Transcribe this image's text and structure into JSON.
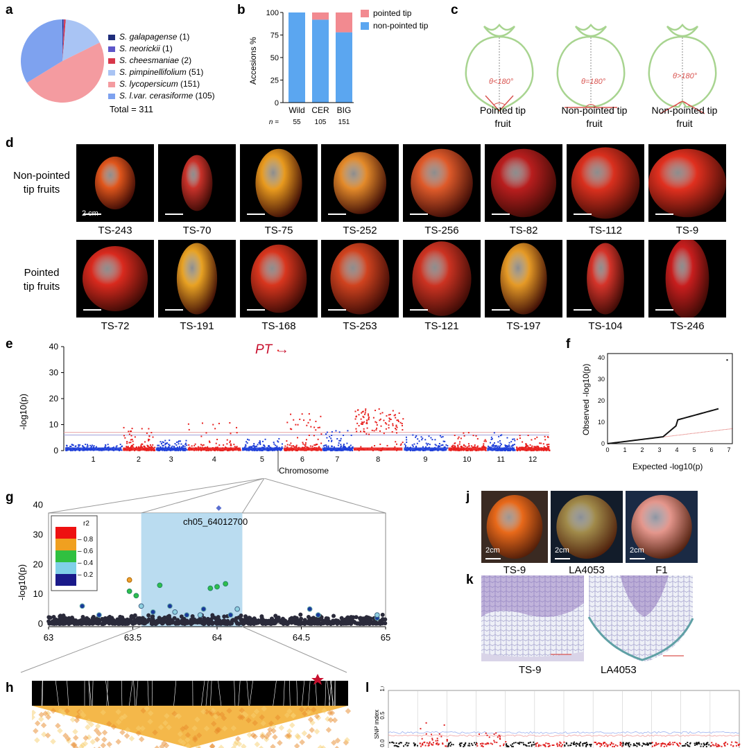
{
  "panels": [
    "a",
    "b",
    "c",
    "d",
    "e",
    "f",
    "g",
    "h",
    "j",
    "k",
    "l"
  ],
  "panel_a": {
    "legend": [
      {
        "name": "S. galapagense",
        "count": "(1)",
        "color": "#1f2d7a"
      },
      {
        "name": "S. neorickii",
        "count": "(1)",
        "color": "#5d56c9"
      },
      {
        "name": "S. cheesmaniae",
        "count": "(2)",
        "color": "#d8374a"
      },
      {
        "name": "S. pimpinellifolium",
        "count": "(51)",
        "color": "#a9c4f4"
      },
      {
        "name": "S. lycopersicum",
        "count": "(151)",
        "color": "#f49ba0"
      },
      {
        "name": "S. l.var. cerasiforme",
        "count": "(105)",
        "color": "#7ea2ef"
      }
    ],
    "total": "Total = 311"
  },
  "panel_b": {
    "legend": [
      {
        "name": "pointed tip",
        "color": "#f28a90"
      },
      {
        "name": "non-pointed tip",
        "color": "#5ba6f0"
      }
    ],
    "n_label": "n ="
  },
  "panel_c": {
    "fruits": [
      {
        "angle": "θ<180°",
        "caption1": "Pointed tip",
        "caption2": "fruit"
      },
      {
        "angle": "θ=180°",
        "caption1": "Non-pointed tip",
        "caption2": "fruit"
      },
      {
        "angle": "θ>180°",
        "caption1": "Non-pointed tip",
        "caption2": "fruit"
      }
    ]
  },
  "panel_d": {
    "row1_label": [
      "Non-pointed",
      "tip fruits"
    ],
    "row2_label": [
      "Pointed",
      "tip fruits"
    ],
    "scale_label": "2 cm",
    "row1": [
      {
        "id": "TS-243",
        "color": "#e0561c"
      },
      {
        "id": "TS-70",
        "color": "#c8322a"
      },
      {
        "id": "TS-75",
        "color": "#e89a1e"
      },
      {
        "id": "TS-252",
        "color": "#e38a2a"
      },
      {
        "id": "TS-256",
        "color": "#de5a2a"
      },
      {
        "id": "TS-82",
        "color": "#b81e1e"
      },
      {
        "id": "TS-112",
        "color": "#d9301e"
      },
      {
        "id": "TS-9",
        "color": "#e0301f"
      }
    ],
    "row2": [
      {
        "id": "TS-72",
        "color": "#d92a1e"
      },
      {
        "id": "TS-191",
        "color": "#e8a223"
      },
      {
        "id": "TS-168",
        "color": "#d8361e"
      },
      {
        "id": "TS-253",
        "color": "#d0431f"
      },
      {
        "id": "TS-121",
        "color": "#cc3322"
      },
      {
        "id": "TS-197",
        "color": "#e59a26"
      },
      {
        "id": "TS-104",
        "color": "#d4342a"
      },
      {
        "id": "TS-246",
        "color": "#c81e1e"
      }
    ]
  },
  "panel_e": {
    "peak_label": "PT",
    "xlabel": "Chromosome",
    "ylabel": "-log10(p)",
    "yticks": [
      "0",
      "10",
      "20",
      "30",
      "40"
    ],
    "chromosomes": [
      "1",
      "2",
      "3",
      "4",
      "5",
      "6",
      "7",
      "8",
      "9",
      "10",
      "11",
      "12"
    ]
  },
  "panel_f": {
    "xlabel": "Expected -log10(p)",
    "ylabel": "Observed -log10(p)",
    "xticks": [
      "0",
      "1",
      "2",
      "3",
      "4",
      "5",
      "6",
      "7"
    ],
    "yticks": [
      "0",
      "10",
      "20",
      "30",
      "40"
    ]
  },
  "panel_g": {
    "snp_label": "ch05_64012700",
    "ylabel": "-log10(p)",
    "yticks": [
      "0",
      "10",
      "20",
      "30",
      "40"
    ],
    "xticks": [
      "63",
      "63.5",
      "64",
      "64.5",
      "65"
    ],
    "r2_title": "r2",
    "r2_ticks": [
      "0.8",
      "0.6",
      "0.4",
      "0.2"
    ]
  },
  "panel_j": {
    "fruits": [
      {
        "id": "TS-9",
        "scale": "2cm",
        "color": "#e8691a"
      },
      {
        "id": "LA4053",
        "scale": "2cm",
        "color": "#a08a4a"
      },
      {
        "id": "F1",
        "scale": "2cm",
        "color": "#e4968c"
      }
    ]
  },
  "panel_k": {
    "labels": [
      "TS-9",
      "LA4053"
    ]
  },
  "panel_l": {
    "yticks": [
      "1.0",
      "0.5",
      "0.0"
    ],
    "ylabel": "SNP index"
  },
  "chart_data": [
    {
      "type": "pie",
      "categories": [
        "S. galapagense",
        "S. neorickii",
        "S. cheesmaniae",
        "S. pimpinellifolium",
        "S. lycopersicum",
        "S. l.var. cerasiforme"
      ],
      "values": [
        1,
        1,
        2,
        51,
        151,
        105
      ]
    },
    {
      "type": "bar",
      "categories": [
        "Wild",
        "CER",
        "BIG"
      ],
      "n": [
        "55",
        "105",
        "151"
      ],
      "series": [
        {
          "name": "non-pointed tip",
          "values": [
            100,
            92,
            78
          ]
        },
        {
          "name": "pointed tip",
          "values": [
            0,
            8,
            22
          ]
        }
      ],
      "ylabel": "Accesions %",
      "yticks": [
        "0",
        "25",
        "50",
        "75",
        "100"
      ],
      "ylim": [
        0,
        100
      ]
    }
  ]
}
